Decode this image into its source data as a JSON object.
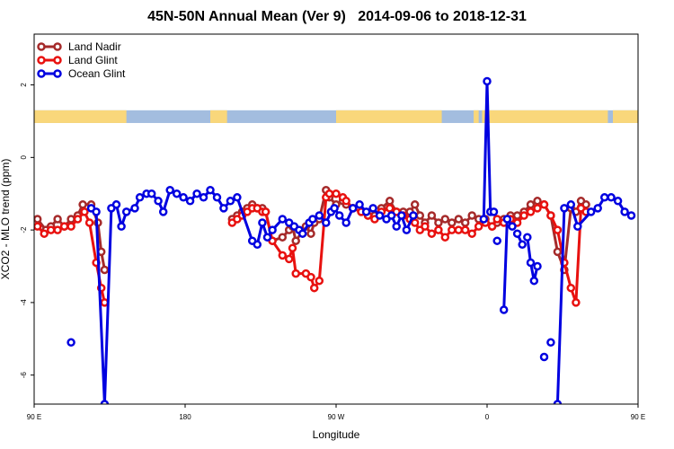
{
  "chart_data": {
    "type": "line",
    "title": "45N-50N Annual Mean (Ver 9)   2014-09-06 to 2018-12-31",
    "xlabel": "Longitude",
    "ylabel": "XCO2 - MLO trend (ppm)",
    "xlim": [
      0,
      360
    ],
    "ylim": [
      -6.8,
      3.4
    ],
    "x_ticks": [
      {
        "value": 0,
        "label": "90 E"
      },
      {
        "value": 90,
        "label": "180"
      },
      {
        "value": 180,
        "label": "90 W"
      },
      {
        "value": 270,
        "label": "0"
      },
      {
        "value": 360,
        "label": "90 E"
      },
      {
        "value": 450,
        "label": "180"
      }
    ],
    "y_ticks": [
      -6,
      -4,
      -2,
      0,
      2
    ],
    "grid": false,
    "legend_position": "top-left",
    "land_sea_strip": {
      "y_range": [
        0.95,
        1.3
      ],
      "land_color": "#f9d77b",
      "ocean_color": "#a3bddf"
    },
    "series": [
      {
        "name": "Land Nadir",
        "color": "#a52a2a",
        "x": [
          2,
          7,
          10,
          14,
          18,
          22,
          26,
          29,
          34,
          38,
          40,
          42,
          118,
          121,
          124,
          127,
          130,
          133,
          136,
          138,
          142,
          148,
          152,
          154,
          156,
          162,
          165,
          167,
          170,
          174,
          176,
          180,
          184,
          186,
          190,
          195,
          199,
          203,
          207,
          212,
          216,
          220,
          224,
          227,
          230,
          233,
          237,
          241,
          245,
          249,
          253,
          257,
          261,
          265,
          269,
          273,
          276,
          280,
          284,
          288,
          292,
          296,
          300,
          304,
          308,
          312,
          316,
          320,
          323,
          326,
          329
        ],
        "y": [
          -1.7,
          -2.0,
          -1.9,
          -1.7,
          -1.9,
          -1.7,
          -1.6,
          -1.3,
          -1.3,
          -1.8,
          -2.6,
          -3.1,
          -1.7,
          -1.6,
          -1.5,
          -1.4,
          -1.3,
          -1.4,
          -1.4,
          -1.5,
          -2.3,
          -2.2,
          -2.0,
          -1.9,
          -2.3,
          -1.9,
          -2.1,
          -1.8,
          -1.7,
          -0.9,
          -1.1,
          -1.3,
          -1.2,
          -1.3,
          -1.4,
          -1.5,
          -1.6,
          -1.6,
          -1.4,
          -1.2,
          -1.5,
          -1.5,
          -1.5,
          -1.3,
          -1.6,
          -1.8,
          -1.6,
          -1.8,
          -1.7,
          -1.8,
          -1.7,
          -1.8,
          -1.6,
          -1.7,
          -1.7,
          -1.9,
          -1.8,
          -1.7,
          -1.6,
          -1.6,
          -1.5,
          -1.3,
          -1.2,
          -1.3,
          -1.6,
          -2.6,
          -3.1,
          -1.4,
          -1.5,
          -1.2,
          -1.3
        ],
        "segments": [
          [
            0,
            11
          ],
          [
            12,
            70
          ]
        ]
      },
      {
        "name": "Land Glint",
        "color": "#e8110f",
        "x": [
          2,
          6,
          10,
          14,
          18,
          22,
          26,
          30,
          33,
          37,
          40,
          42,
          118,
          121,
          124,
          127,
          130,
          133,
          136,
          138,
          142,
          148,
          152,
          154,
          156,
          162,
          165,
          167,
          170,
          174,
          176,
          180,
          184,
          186,
          190,
          195,
          199,
          203,
          207,
          212,
          216,
          220,
          224,
          227,
          230,
          233,
          237,
          241,
          245,
          249,
          253,
          257,
          261,
          265,
          269,
          273,
          276,
          280,
          284,
          288,
          292,
          296,
          300,
          304,
          308,
          312,
          316,
          320,
          323,
          326,
          329
        ],
        "y": [
          -1.9,
          -2.1,
          -2.0,
          -2.0,
          -1.9,
          -1.9,
          -1.7,
          -1.5,
          -1.8,
          -2.9,
          -3.6,
          -4.0,
          -1.8,
          -1.7,
          -1.6,
          -1.5,
          -1.4,
          -1.4,
          -1.5,
          -1.5,
          -2.3,
          -2.7,
          -2.8,
          -2.5,
          -3.2,
          -3.2,
          -3.3,
          -3.6,
          -3.4,
          -1.1,
          -1.0,
          -1.0,
          -1.1,
          -1.2,
          -1.4,
          -1.5,
          -1.6,
          -1.7,
          -1.5,
          -1.4,
          -1.5,
          -1.6,
          -1.7,
          -1.8,
          -2.0,
          -1.9,
          -2.1,
          -2.0,
          -2.2,
          -2.0,
          -2.0,
          -2.0,
          -2.1,
          -1.9,
          -1.8,
          -1.9,
          -1.7,
          -1.8,
          -1.7,
          -1.8,
          -1.6,
          -1.5,
          -1.4,
          -1.3,
          -1.6,
          -2.0,
          -2.9,
          -3.6,
          -4.0,
          -1.4,
          -1.5
        ],
        "segments": [
          [
            0,
            11
          ],
          [
            12,
            70
          ]
        ]
      },
      {
        "name": "Ocean Glint",
        "color": "#0000e0",
        "x": [
          22,
          34,
          37,
          42,
          46,
          49,
          52,
          55,
          60,
          63,
          67,
          70,
          74,
          77,
          81,
          85,
          89,
          93,
          97,
          101,
          105,
          109,
          113,
          117,
          121,
          130,
          133,
          136,
          139,
          142,
          148,
          152,
          155,
          158,
          160,
          164,
          166,
          170,
          174,
          177,
          179,
          182,
          186,
          190,
          194,
          198,
          202,
          206,
          210,
          213,
          216,
          219,
          222,
          226,
          268,
          270,
          272,
          274,
          276,
          280,
          282,
          285,
          288,
          291,
          294,
          296,
          298,
          300,
          304,
          308,
          312,
          316,
          320,
          324,
          332,
          336,
          340,
          344,
          348,
          352,
          356
        ],
        "y": [
          -5.1,
          -1.4,
          -1.5,
          -6.8,
          -1.4,
          -1.3,
          -1.9,
          -1.5,
          -1.4,
          -1.1,
          -1.0,
          -1.0,
          -1.2,
          -1.5,
          -0.9,
          -1.0,
          -1.1,
          -1.2,
          -1.0,
          -1.1,
          -0.9,
          -1.1,
          -1.4,
          -1.2,
          -1.1,
          -2.3,
          -2.4,
          -1.8,
          -2.2,
          -2.0,
          -1.7,
          -1.8,
          -1.9,
          -2.0,
          -2.1,
          -1.8,
          -1.7,
          -1.6,
          -1.8,
          -1.5,
          -1.4,
          -1.6,
          -1.8,
          -1.4,
          -1.3,
          -1.5,
          -1.4,
          -1.6,
          -1.7,
          -1.6,
          -1.9,
          -1.6,
          -2.0,
          -1.6,
          -1.7,
          2.1,
          -1.5,
          -1.5,
          -2.3,
          -4.2,
          -1.7,
          -1.9,
          -2.1,
          -2.4,
          -2.2,
          -2.9,
          -3.4,
          -3.0,
          -5.5,
          -5.1,
          -6.8,
          -1.4,
          -1.3,
          -1.9,
          -1.5,
          -1.4,
          -1.1,
          -1.1,
          -1.2,
          -1.5,
          -1.6
        ],
        "segments": [
          [
            0,
            0
          ],
          [
            1,
            25
          ],
          [
            26,
            53
          ],
          [
            54,
            56
          ],
          [
            57,
            57
          ],
          [
            58,
            58
          ],
          [
            59,
            61
          ],
          [
            62,
            63
          ],
          [
            64,
            67
          ],
          [
            68,
            68
          ],
          [
            69,
            69
          ],
          [
            70,
            80
          ]
        ]
      }
    ]
  }
}
